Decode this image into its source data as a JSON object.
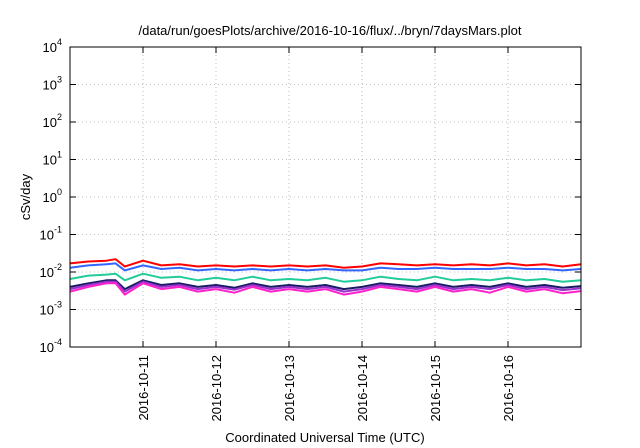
{
  "chart_data": {
    "type": "line",
    "title": "/data/run/goesPlots/archive/2016-10-16/flux/../bryn/7daysMars.plot",
    "xlabel": "Coordinated Universal Time (UTC)",
    "ylabel": "cSv/day",
    "yscale": "log",
    "ylim": [
      0.0001,
      10000
    ],
    "xlim": [
      "2016-10-10T00:00",
      "2016-10-17T00:00"
    ],
    "grid": true,
    "legend": "none",
    "x_ticks": [
      "2016-10-11",
      "2016-10-12",
      "2016-10-13",
      "2016-10-14",
      "2016-10-15",
      "2016-10-16"
    ],
    "y_ticks": [
      {
        "base": "10",
        "exp": "-4",
        "value": 0.0001
      },
      {
        "base": "10",
        "exp": "-3",
        "value": 0.001
      },
      {
        "base": "10",
        "exp": "-2",
        "value": 0.01
      },
      {
        "base": "10",
        "exp": "-1",
        "value": 0.1
      },
      {
        "base": "10",
        "exp": "0",
        "value": 1
      },
      {
        "base": "10",
        "exp": "1",
        "value": 10
      },
      {
        "base": "10",
        "exp": "2",
        "value": 100
      },
      {
        "base": "10",
        "exp": "3",
        "value": 1000
      },
      {
        "base": "10",
        "exp": "4",
        "value": 10000
      }
    ],
    "x": [
      "2016-10-10T00:00",
      "2016-10-10T06:00",
      "2016-10-10T12:00",
      "2016-10-10T15:00",
      "2016-10-10T18:00",
      "2016-10-11T00:00",
      "2016-10-11T06:00",
      "2016-10-11T12:00",
      "2016-10-11T18:00",
      "2016-10-12T00:00",
      "2016-10-12T06:00",
      "2016-10-12T12:00",
      "2016-10-12T18:00",
      "2016-10-13T00:00",
      "2016-10-13T06:00",
      "2016-10-13T12:00",
      "2016-10-13T18:00",
      "2016-10-14T00:00",
      "2016-10-14T06:00",
      "2016-10-14T12:00",
      "2016-10-14T18:00",
      "2016-10-15T00:00",
      "2016-10-15T06:00",
      "2016-10-15T12:00",
      "2016-10-15T18:00",
      "2016-10-16T00:00",
      "2016-10-16T06:00",
      "2016-10-16T12:00",
      "2016-10-16T18:00",
      "2016-10-17T00:00"
    ],
    "series": [
      {
        "color": "#ff0000",
        "values": [
          0.017,
          0.019,
          0.02,
          0.022,
          0.014,
          0.02,
          0.015,
          0.016,
          0.014,
          0.015,
          0.014,
          0.015,
          0.014,
          0.015,
          0.014,
          0.015,
          0.013,
          0.014,
          0.017,
          0.016,
          0.015,
          0.016,
          0.015,
          0.016,
          0.015,
          0.017,
          0.015,
          0.016,
          0.014,
          0.016
        ]
      },
      {
        "color": "#3366ff",
        "values": [
          0.013,
          0.015,
          0.016,
          0.017,
          0.011,
          0.015,
          0.012,
          0.013,
          0.011,
          0.012,
          0.011,
          0.012,
          0.011,
          0.012,
          0.011,
          0.012,
          0.011,
          0.011,
          0.013,
          0.012,
          0.012,
          0.013,
          0.012,
          0.012,
          0.012,
          0.013,
          0.012,
          0.012,
          0.011,
          0.012
        ]
      },
      {
        "color": "#22cc99",
        "values": [
          0.0065,
          0.008,
          0.0085,
          0.009,
          0.006,
          0.009,
          0.007,
          0.0075,
          0.006,
          0.007,
          0.006,
          0.0075,
          0.006,
          0.0065,
          0.006,
          0.007,
          0.0055,
          0.006,
          0.0075,
          0.0065,
          0.006,
          0.0075,
          0.006,
          0.0065,
          0.006,
          0.007,
          0.006,
          0.0065,
          0.0055,
          0.006
        ]
      },
      {
        "color": "#1a1a66",
        "values": [
          0.004,
          0.005,
          0.006,
          0.006,
          0.0035,
          0.006,
          0.0045,
          0.005,
          0.004,
          0.0045,
          0.0038,
          0.005,
          0.004,
          0.0045,
          0.004,
          0.0045,
          0.0035,
          0.004,
          0.005,
          0.0045,
          0.004,
          0.005,
          0.004,
          0.0045,
          0.004,
          0.005,
          0.004,
          0.0045,
          0.0038,
          0.0042
        ]
      },
      {
        "color": "#9933cc",
        "values": [
          0.0035,
          0.0045,
          0.0055,
          0.0055,
          0.003,
          0.0055,
          0.004,
          0.0045,
          0.0035,
          0.004,
          0.0034,
          0.0045,
          0.0035,
          0.004,
          0.0035,
          0.004,
          0.003,
          0.0035,
          0.0045,
          0.004,
          0.0035,
          0.0045,
          0.0035,
          0.004,
          0.0035,
          0.0045,
          0.0035,
          0.004,
          0.0033,
          0.0037
        ]
      },
      {
        "color": "#ff22cc",
        "values": [
          0.003,
          0.004,
          0.005,
          0.005,
          0.0025,
          0.005,
          0.0035,
          0.004,
          0.003,
          0.0035,
          0.0028,
          0.004,
          0.003,
          0.0035,
          0.003,
          0.0035,
          0.0025,
          0.003,
          0.004,
          0.0035,
          0.003,
          0.004,
          0.003,
          0.0035,
          0.0028,
          0.004,
          0.003,
          0.0035,
          0.0027,
          0.0031
        ]
      }
    ]
  }
}
